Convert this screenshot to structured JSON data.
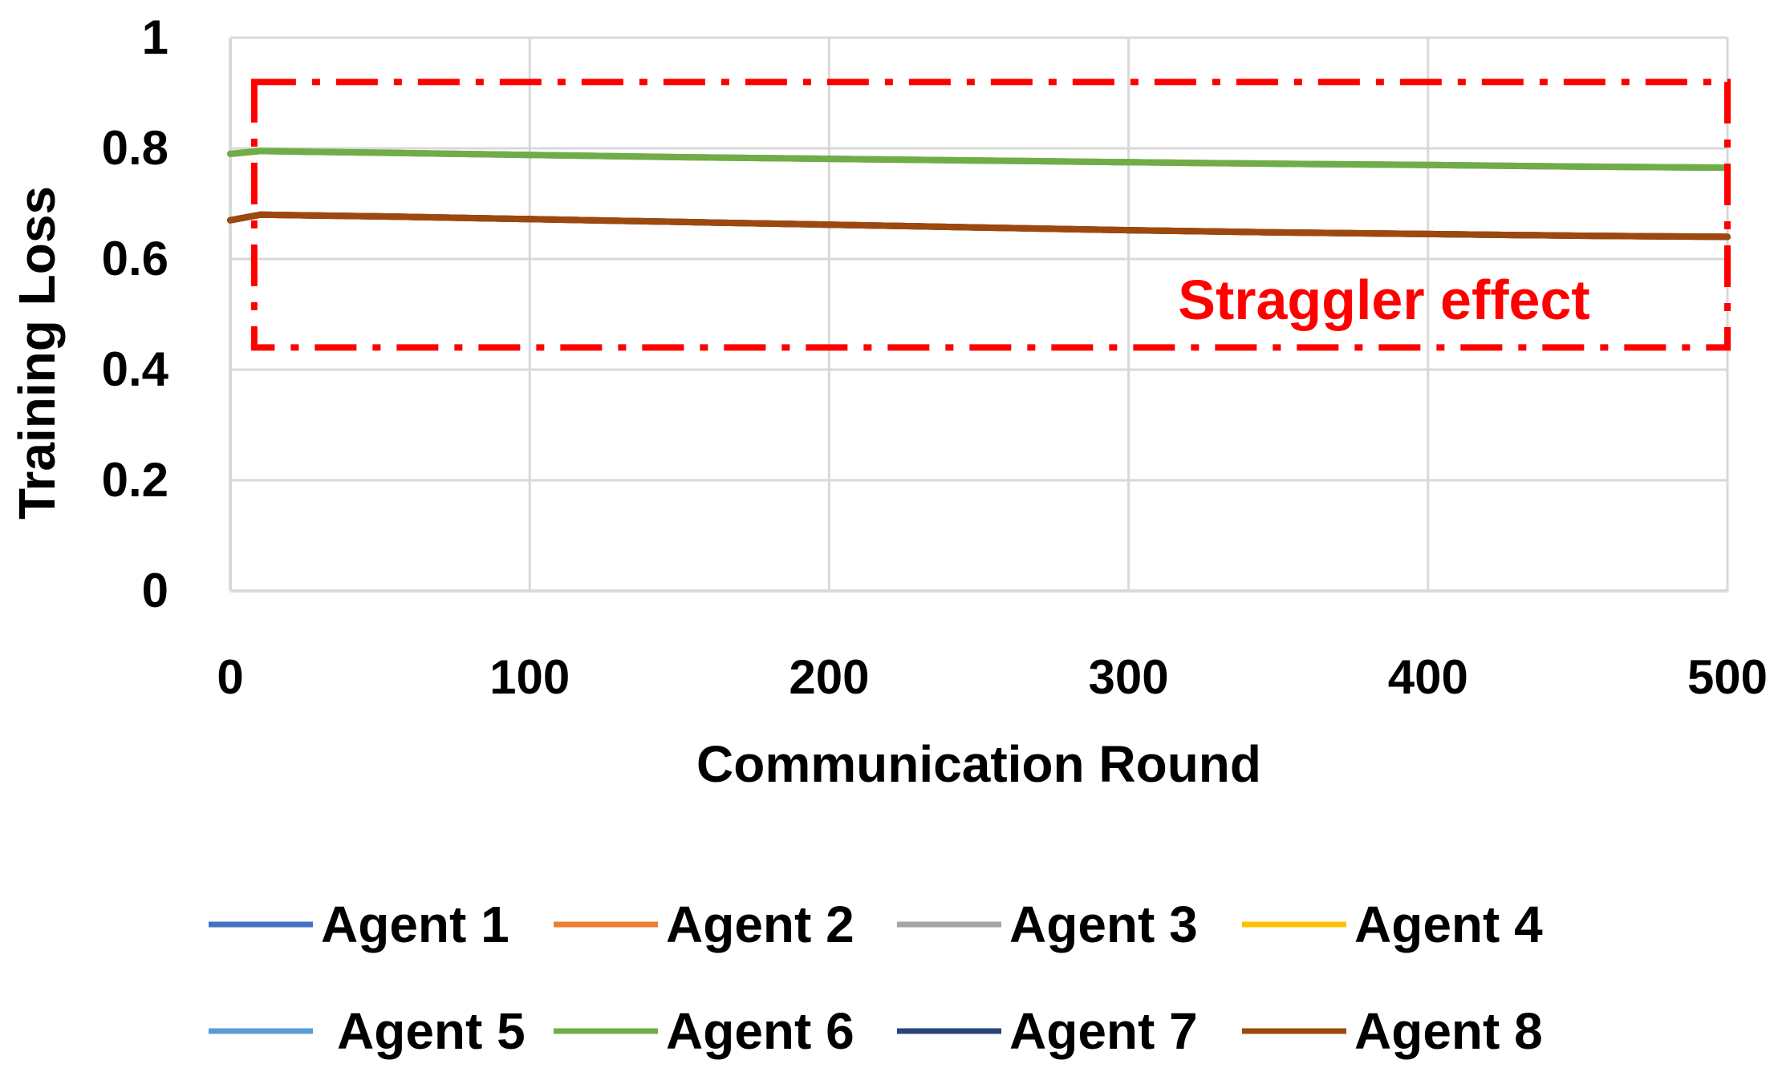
{
  "chart_data": {
    "type": "line",
    "title": "",
    "xlabel": "Communication Round",
    "ylabel": "Training Loss",
    "xlim": [
      0,
      500
    ],
    "ylim": [
      0,
      1
    ],
    "x_ticks": [
      0,
      100,
      200,
      300,
      400,
      500
    ],
    "x_tick_labels": [
      "0",
      "100",
      "200",
      "300",
      "400",
      "500"
    ],
    "y_ticks": [
      0,
      0.2,
      0.4,
      0.6,
      0.8,
      1
    ],
    "y_tick_labels": [
      "0",
      "0.2",
      "0.4",
      "0.6",
      "0.8",
      "1"
    ],
    "grid": true,
    "legend_position": "bottom",
    "x": [
      0,
      10,
      50,
      100,
      150,
      200,
      250,
      300,
      350,
      400,
      450,
      500
    ],
    "series": [
      {
        "name": "Agent 1",
        "color": "#4472C4",
        "values": [
          0.67,
          0.68,
          0.677,
          0.672,
          0.667,
          0.662,
          0.657,
          0.652,
          0.648,
          0.645,
          0.642,
          0.64
        ]
      },
      {
        "name": "Agent 2",
        "color": "#ED7D31",
        "values": [
          0.67,
          0.68,
          0.677,
          0.672,
          0.667,
          0.662,
          0.657,
          0.652,
          0.648,
          0.645,
          0.642,
          0.64
        ]
      },
      {
        "name": "Agent 3",
        "color": "#A5A5A5",
        "values": [
          0.67,
          0.68,
          0.677,
          0.672,
          0.667,
          0.662,
          0.657,
          0.652,
          0.648,
          0.645,
          0.642,
          0.64
        ]
      },
      {
        "name": "Agent 4",
        "color": "#FFC000",
        "values": [
          0.79,
          0.795,
          0.792,
          0.788,
          0.784,
          0.781,
          0.778,
          0.775,
          0.772,
          0.77,
          0.767,
          0.765
        ]
      },
      {
        "name": "Agent 5",
        "color": "#5B9BD5",
        "values": [
          0.79,
          0.795,
          0.792,
          0.788,
          0.784,
          0.781,
          0.778,
          0.775,
          0.772,
          0.77,
          0.767,
          0.765
        ]
      },
      {
        "name": "Agent 6",
        "color": "#70AD47",
        "values": [
          0.79,
          0.795,
          0.792,
          0.788,
          0.784,
          0.781,
          0.778,
          0.775,
          0.772,
          0.77,
          0.767,
          0.765
        ]
      },
      {
        "name": "Agent 7",
        "color": "#264478",
        "values": [
          0.67,
          0.68,
          0.677,
          0.672,
          0.667,
          0.662,
          0.657,
          0.652,
          0.648,
          0.645,
          0.642,
          0.64
        ]
      },
      {
        "name": "Agent 8",
        "color": "#9E480E",
        "values": [
          0.67,
          0.68,
          0.677,
          0.672,
          0.667,
          0.662,
          0.657,
          0.652,
          0.648,
          0.645,
          0.642,
          0.64
        ]
      }
    ],
    "annotations": [
      {
        "text": "Straggler effect",
        "color": "#FF0000",
        "box_x_range": [
          8,
          500
        ],
        "box_y_range": [
          0.44,
          0.92
        ]
      }
    ]
  }
}
